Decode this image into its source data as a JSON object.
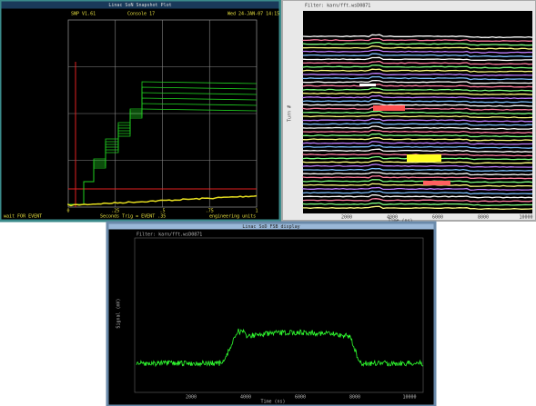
{
  "windows": [
    {
      "title": "Linac SoN Snapshot Plot",
      "header_left": "SNP V1.61",
      "header_mid": "Console 17",
      "header_right": "Wed 24-JAN-07 14:15",
      "x_ticks": [
        "0",
        ".25",
        ".5",
        ".75",
        "1"
      ],
      "x_label": "Seconds  Trig = EVENT  .35",
      "units": "engineering units",
      "status": "wait FOR EVENT"
    },
    {
      "title": "Filter: karn/fft.wsD0871",
      "x_ticks": [
        "2000",
        "4000",
        "6000",
        "8000",
        "10000"
      ],
      "x_label": "Time (ns)",
      "y_label": "Turn #"
    },
    {
      "title": "Linac SoD FSB display",
      "header": "Filter: karn/fft.wsD0871",
      "x_ticks": [
        "2000",
        "4000",
        "6000",
        "8000",
        "10000"
      ],
      "x_label": "Time (ns)",
      "y_label": "Signal (mV)"
    }
  ]
}
